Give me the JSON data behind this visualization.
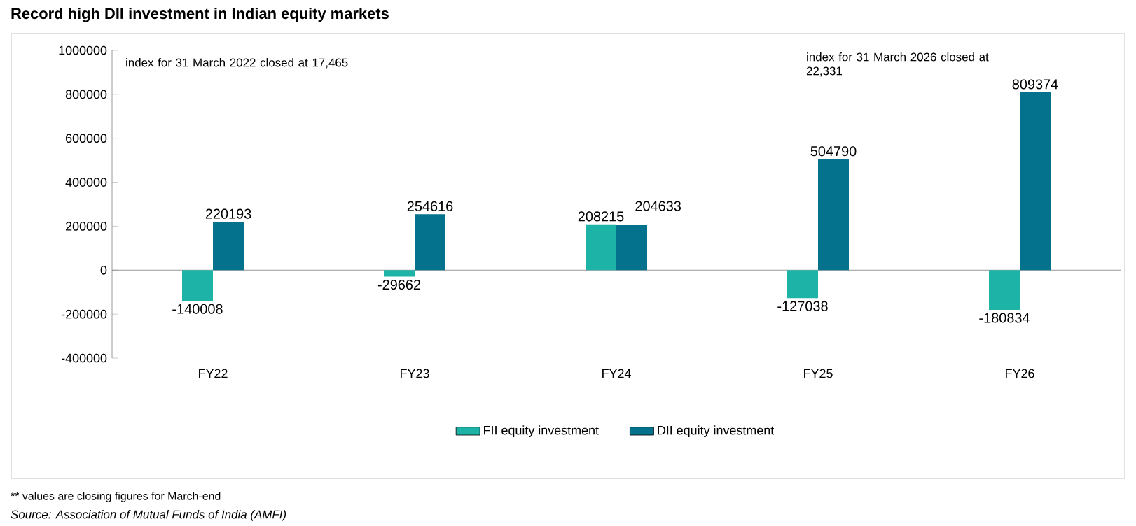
{
  "chart_data": {
    "type": "bar",
    "title": "Record high DII investment in Indian equity markets",
    "categories": [
      "FY22",
      "FY23",
      "FY24",
      "FY25",
      "FY26"
    ],
    "series": [
      {
        "name": "FII equity investment",
        "color": "#1db3a6",
        "values": [
          -140008,
          -29662,
          208215,
          -127038,
          -180834
        ]
      },
      {
        "name": "DII equity investment",
        "color": "#04728c",
        "values": [
          220193,
          254616,
          204633,
          504790,
          809374
        ]
      }
    ],
    "ylim": [
      -400000,
      1000000
    ],
    "yticks": [
      -400000,
      -200000,
      0,
      200000,
      400000,
      600000,
      800000,
      1000000
    ],
    "data_labels": true,
    "legend": "bottom",
    "annotations": [
      "index for 31 March 2022 closed at 17,465",
      "index for 31 March 2026 closed at 22,331",
      "** values are closing figures for March-end",
      "Source: Association of Mutual Funds of India (AMFI)"
    ]
  }
}
